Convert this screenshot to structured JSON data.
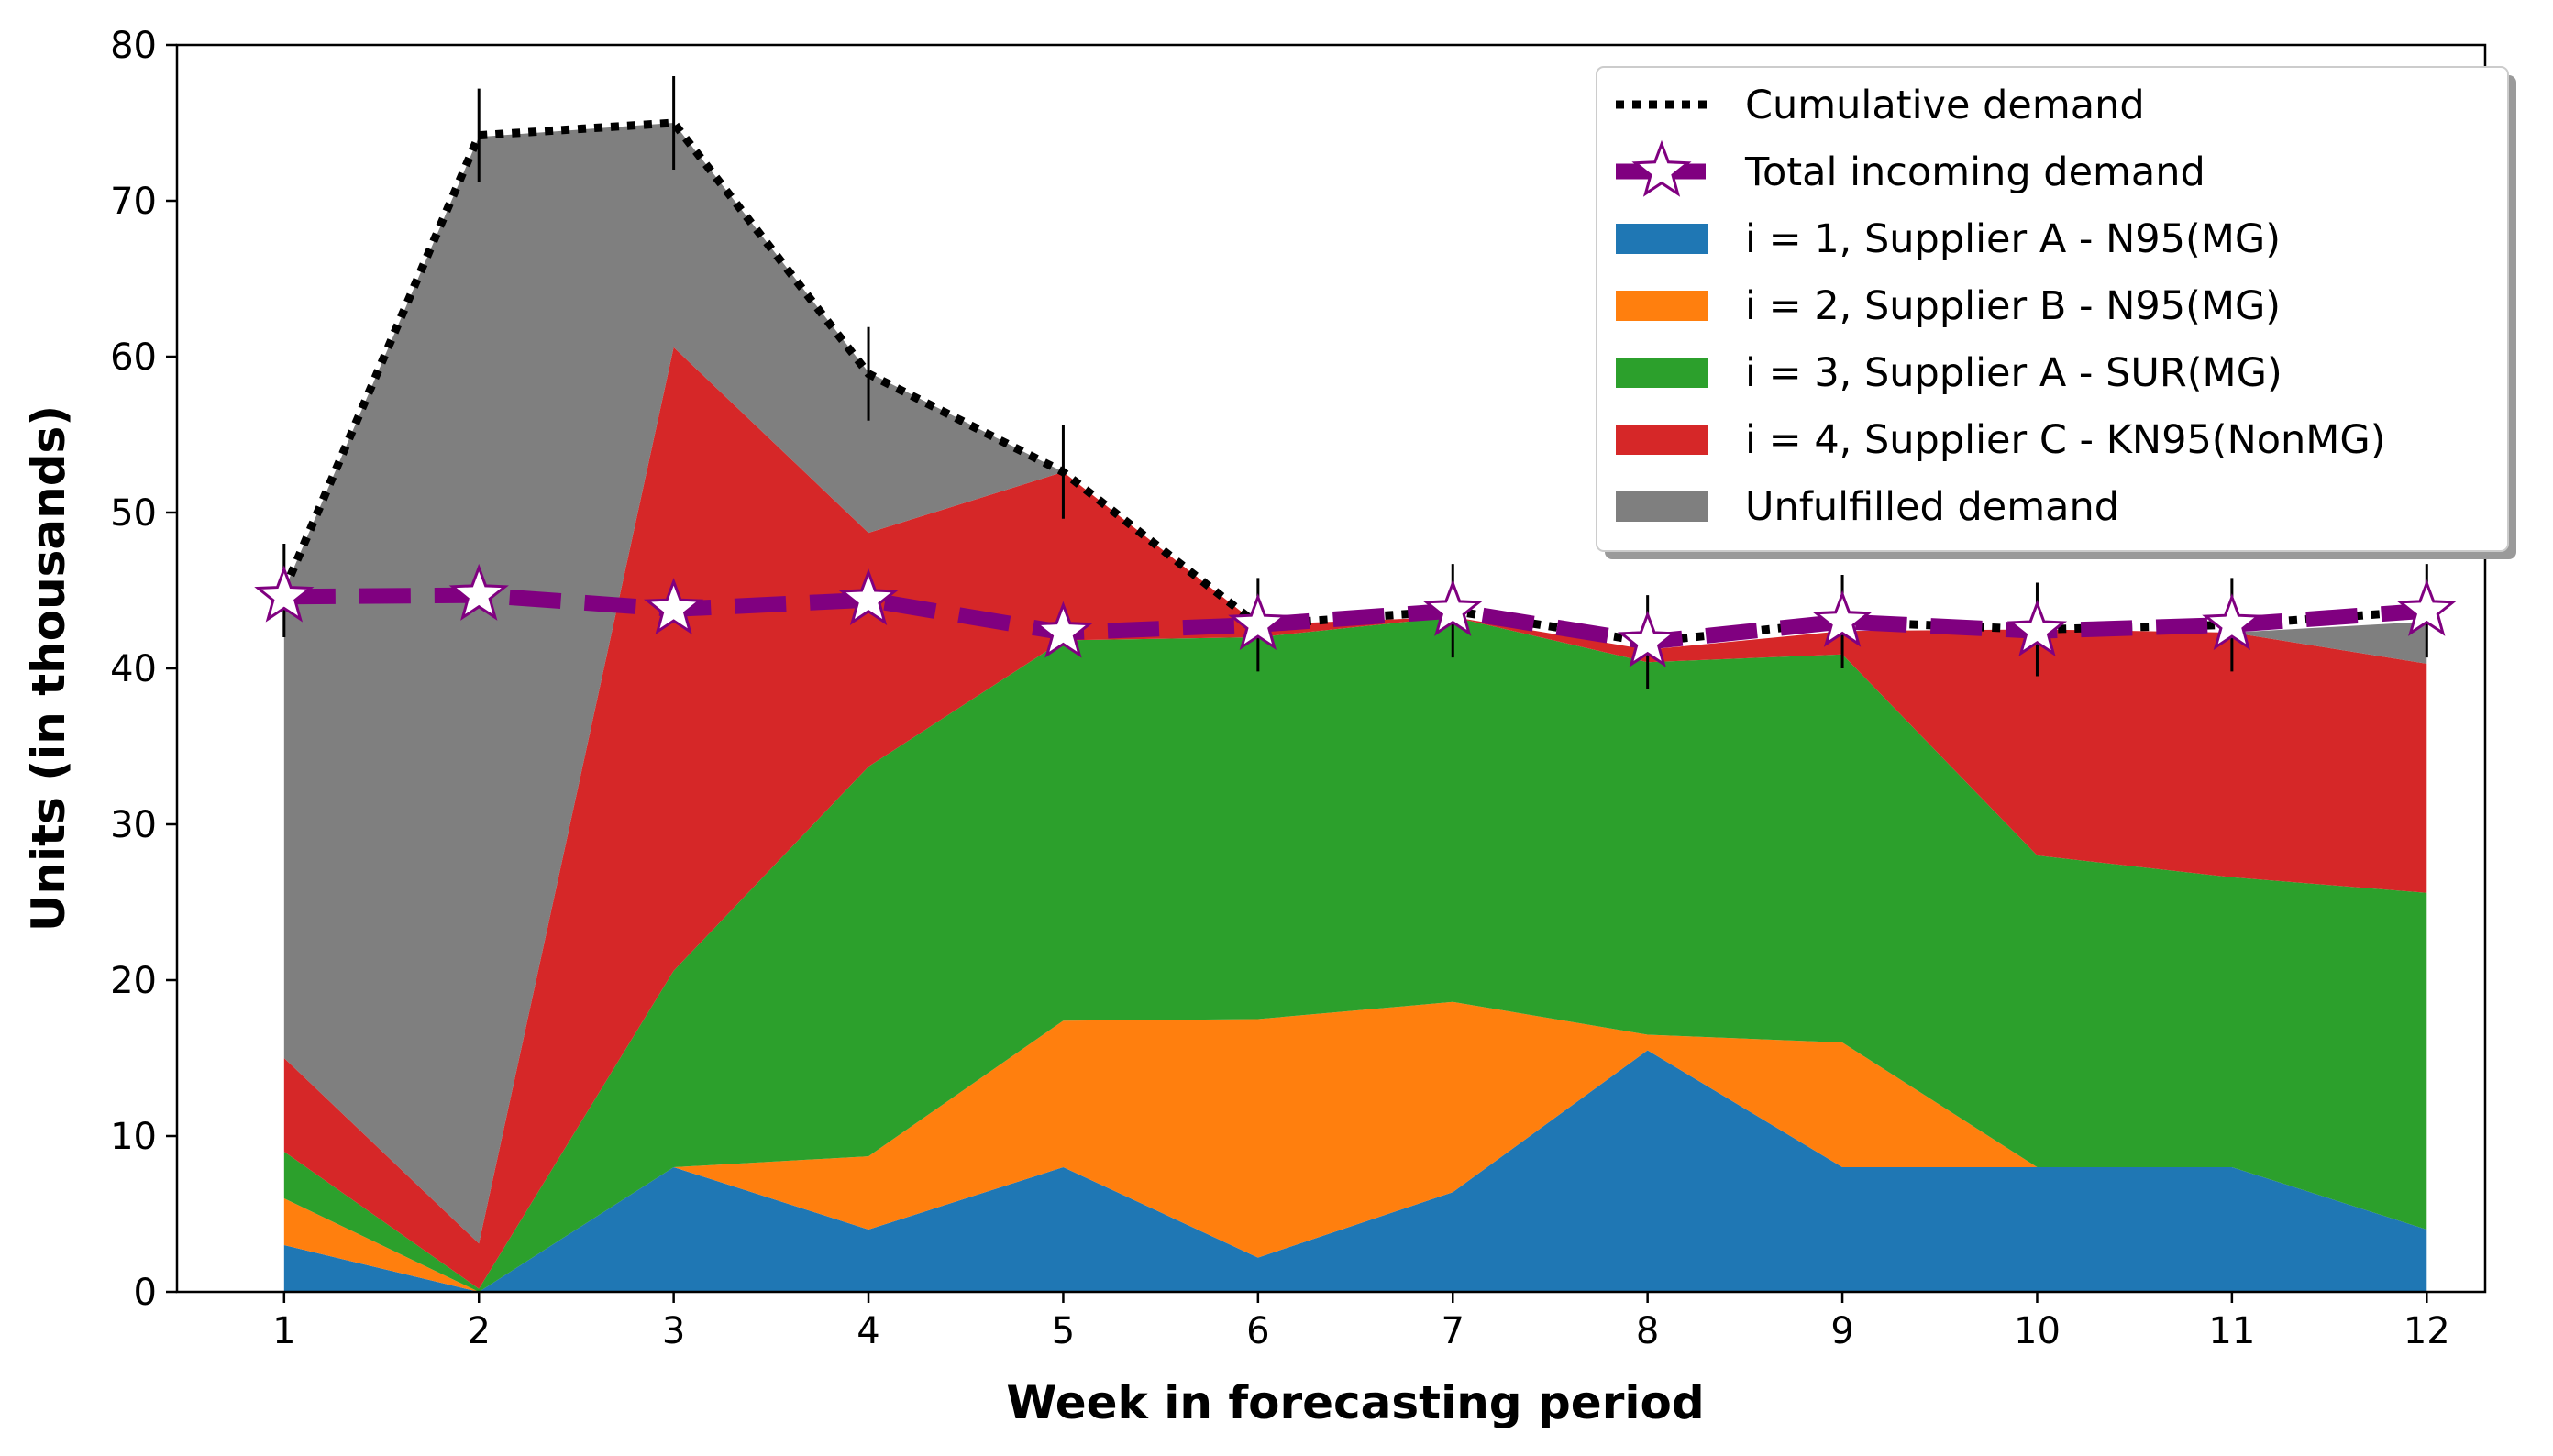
{
  "chart_data": {
    "type": "area",
    "xlabel": "Week in forecasting period",
    "ylabel": "Units (in thousands)",
    "xlim": [
      0.45,
      12.3
    ],
    "ylim": [
      0,
      80
    ],
    "x": [
      1,
      2,
      3,
      4,
      5,
      6,
      7,
      8,
      9,
      10,
      11,
      12
    ],
    "x_ticks": [
      "1",
      "2",
      "3",
      "4",
      "5",
      "6",
      "7",
      "8",
      "9",
      "10",
      "11",
      "12"
    ],
    "y_ticks": [
      0,
      10,
      20,
      30,
      40,
      50,
      60,
      70,
      80
    ],
    "stacked_series": [
      {
        "name": "i = 1, Supplier A - N95(MG)",
        "color": "#1f77b4",
        "values": [
          3,
          0,
          8,
          4,
          8,
          2.2,
          6.4,
          15.5,
          8,
          8,
          8,
          4
        ]
      },
      {
        "name": "i = 2, Supplier B - N95(MG)",
        "color": "#ff7f0e",
        "values": [
          3,
          0,
          0,
          4.7,
          9.4,
          15.3,
          12.2,
          1,
          8,
          0,
          0,
          0
        ]
      },
      {
        "name": "i = 3, Supplier A - SUR(MG)",
        "color": "#2ca02c",
        "values": [
          3,
          0.2,
          12.6,
          25,
          24.4,
          24.5,
          24.7,
          23.9,
          24.9,
          20,
          18.6,
          21.6
        ]
      },
      {
        "name": "i = 4, Supplier C - KN95(NonMG)",
        "color": "#d62728",
        "values": [
          6,
          2.9,
          40,
          15,
          10.8,
          0.8,
          0,
          0.8,
          1.5,
          14.5,
          15.7,
          14.7
        ]
      },
      {
        "name": "Unfulfilled demand",
        "color": "#7f7f7f",
        "values": [
          30,
          71,
          14.4,
          10.3,
          0,
          0,
          0,
          0,
          0,
          0,
          0,
          2.7
        ]
      }
    ],
    "cumulative_demand": {
      "name": "Cumulative demand",
      "color": "#000000",
      "values": [
        45,
        74.2,
        75,
        58.9,
        52.6,
        42.8,
        43.7,
        41.7,
        43,
        42.5,
        42.8,
        43.7
      ],
      "error": 3
    },
    "total_incoming_demand": {
      "name": "Total incoming demand",
      "color": "#800080",
      "values": [
        44.6,
        44.7,
        43.8,
        44.4,
        42.3,
        42.8,
        43.7,
        41.7,
        43,
        42.4,
        42.8,
        43.7
      ]
    },
    "legend_position": "upper right",
    "grid": false
  }
}
